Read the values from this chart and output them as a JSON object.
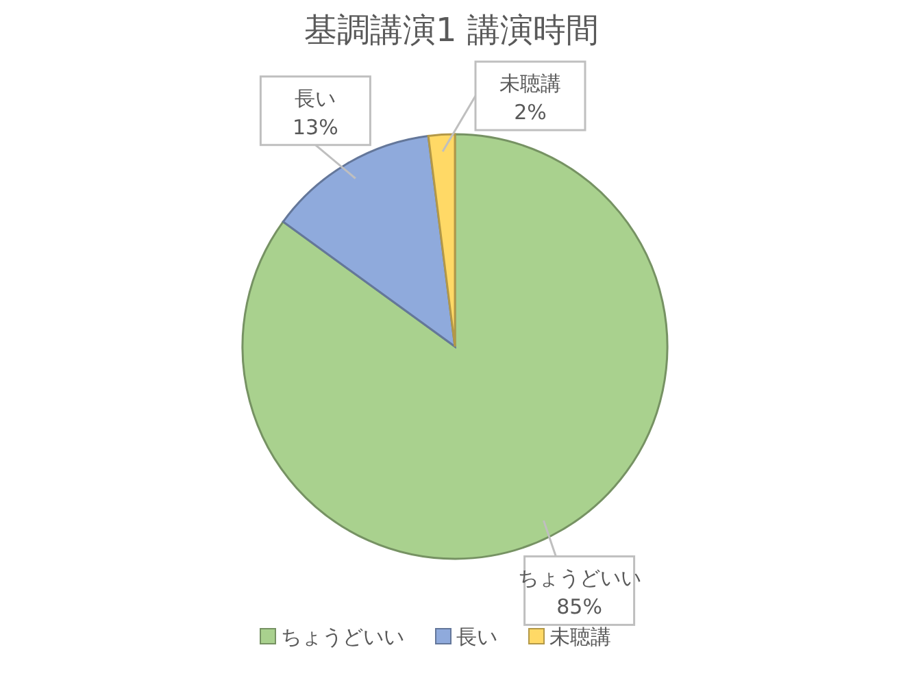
{
  "chart_data": {
    "type": "pie",
    "title": "基調講演1 講演時間",
    "categories": [
      "ちょうどいい",
      "長い",
      "未聴講"
    ],
    "values": [
      85,
      13,
      2
    ],
    "colors": [
      "#a9d18e",
      "#8faadc",
      "#ffd966"
    ],
    "value_labels": [
      "85%",
      "13%",
      "2%"
    ],
    "legend": "bottom"
  }
}
